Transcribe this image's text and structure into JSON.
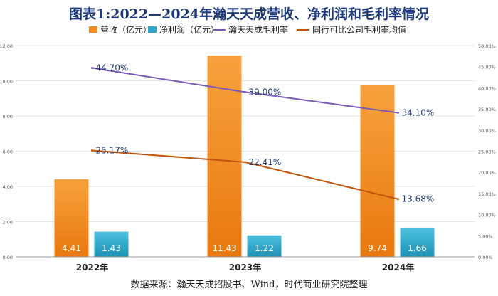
{
  "chart_data": {
    "type": "bar",
    "title": "图表1:2022—2024年瀚天天成营收、净利润和毛利率情况",
    "categories": [
      "2022年",
      "2023年",
      "2024年"
    ],
    "series": [
      {
        "name": "营收（亿元）",
        "kind": "bar",
        "axis": "left",
        "color": "#f28a1c",
        "values": [
          4.41,
          11.43,
          9.74
        ],
        "labels": [
          "4.41",
          "11.43",
          "9.74"
        ]
      },
      {
        "name": "净利润（亿元）",
        "kind": "bar",
        "axis": "left",
        "color": "#2ea7c9",
        "values": [
          1.43,
          1.22,
          1.66
        ],
        "labels": [
          "1.43",
          "1.22",
          "1.66"
        ]
      },
      {
        "name": "瀚天天成毛利率",
        "kind": "line",
        "axis": "right",
        "color": "#7a5ab8",
        "values": [
          44.7,
          39.0,
          34.1
        ],
        "labels": [
          "44.70%",
          "39.00%",
          "34.10%"
        ]
      },
      {
        "name": "同行可比公司毛利率均值",
        "kind": "line",
        "axis": "right",
        "color": "#c0560e",
        "values": [
          25.17,
          22.41,
          13.68
        ],
        "labels": [
          "25.17%",
          "22.41%",
          "13.68%"
        ]
      }
    ],
    "y_left": {
      "min": 0,
      "max": 12,
      "ticks": [
        "0.00",
        "2.00",
        "4.00",
        "6.00",
        "8.00",
        "10.00",
        "12.00"
      ]
    },
    "y_right": {
      "min": 0,
      "max": 50,
      "ticks": [
        "0.00%",
        "5.00%",
        "10.00%",
        "15.00%",
        "20.00%",
        "25.00%",
        "30.00%",
        "35.00%",
        "40.00%",
        "45.00%",
        "50.00%"
      ]
    },
    "legend_position": "top",
    "source": "数据来源：瀚天天成招股书、Wind，时代商业研究院整理"
  }
}
